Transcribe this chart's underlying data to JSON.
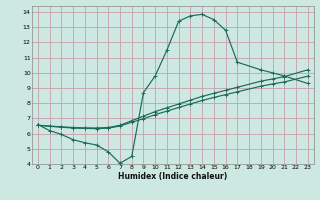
{
  "xlabel": "Humidex (Indice chaleur)",
  "bg_color": "#cce8e0",
  "grid_color": "#c8a0aa",
  "line_color": "#1a6b5a",
  "xlim": [
    -0.5,
    23.5
  ],
  "ylim": [
    4,
    14.4
  ],
  "xticks": [
    0,
    1,
    2,
    3,
    4,
    5,
    6,
    7,
    8,
    9,
    10,
    11,
    12,
    13,
    14,
    15,
    16,
    17,
    18,
    19,
    20,
    21,
    22,
    23
  ],
  "yticks": [
    4,
    5,
    6,
    7,
    8,
    9,
    10,
    11,
    12,
    13,
    14
  ],
  "curve1_x": [
    0,
    1,
    2,
    3,
    4,
    5,
    6,
    7,
    8,
    9,
    10,
    11,
    12,
    13,
    14,
    15,
    16,
    17,
    19,
    20,
    21,
    23
  ],
  "curve1_y": [
    6.6,
    6.2,
    5.95,
    5.6,
    5.4,
    5.25,
    4.8,
    4.05,
    4.5,
    8.7,
    9.8,
    11.5,
    13.4,
    13.75,
    13.85,
    13.5,
    12.8,
    10.7,
    10.2,
    10.0,
    9.8,
    9.3
  ],
  "curve2_x": [
    0,
    1,
    2,
    3,
    4,
    5,
    6,
    7,
    8,
    9,
    10,
    11,
    12,
    13,
    14,
    15,
    16,
    17,
    19,
    20,
    21,
    23
  ],
  "curve2_y": [
    6.55,
    6.5,
    6.45,
    6.4,
    6.38,
    6.37,
    6.4,
    6.55,
    6.85,
    7.15,
    7.45,
    7.7,
    7.95,
    8.2,
    8.45,
    8.65,
    8.85,
    9.05,
    9.45,
    9.6,
    9.75,
    10.2
  ],
  "curve3_x": [
    0,
    1,
    2,
    3,
    4,
    5,
    6,
    7,
    8,
    9,
    10,
    11,
    12,
    13,
    14,
    15,
    16,
    17,
    19,
    20,
    21,
    23
  ],
  "curve3_y": [
    6.55,
    6.48,
    6.42,
    6.37,
    6.34,
    6.33,
    6.36,
    6.5,
    6.75,
    6.98,
    7.25,
    7.48,
    7.72,
    7.95,
    8.18,
    8.38,
    8.57,
    8.75,
    9.12,
    9.27,
    9.4,
    9.78
  ]
}
